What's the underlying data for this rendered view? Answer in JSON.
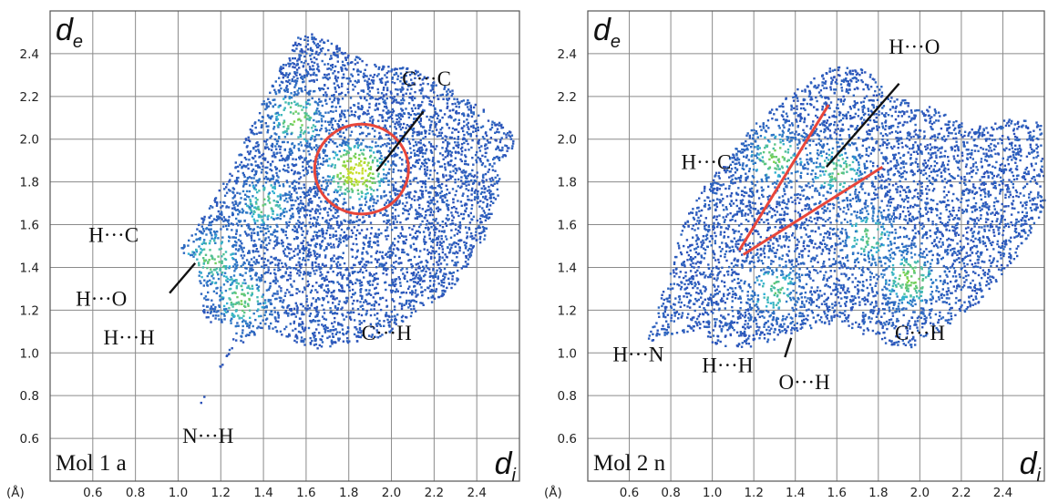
{
  "chart_data": [
    {
      "type": "scatter",
      "panel_label": "Mol 1 a",
      "xlabel_main": "d",
      "xlabel_sub": "i",
      "ylabel_main": "d",
      "ylabel_sub": "e",
      "unit_label": "(Å)",
      "xlim": [
        0.4,
        2.6
      ],
      "ylim": [
        0.4,
        2.6
      ],
      "x_ticks": [
        0.6,
        0.8,
        1.0,
        1.2,
        1.4,
        1.6,
        1.8,
        2.0,
        2.2,
        2.4
      ],
      "y_ticks": [
        0.6,
        0.8,
        1.0,
        1.2,
        1.4,
        1.6,
        1.8,
        2.0,
        2.2,
        2.4
      ],
      "grid": true,
      "envelope": [
        [
          1.05,
          0.68
        ],
        [
          1.25,
          1.02
        ],
        [
          1.4,
          1.12
        ],
        [
          1.62,
          1.02
        ],
        [
          1.96,
          1.08
        ],
        [
          2.12,
          1.2
        ],
        [
          2.28,
          1.3
        ],
        [
          2.44,
          1.55
        ],
        [
          2.58,
          2.02
        ],
        [
          2.42,
          2.15
        ],
        [
          2.12,
          2.33
        ],
        [
          1.9,
          2.36
        ],
        [
          1.78,
          2.42
        ],
        [
          1.64,
          2.5
        ],
        [
          1.55,
          2.48
        ],
        [
          1.4,
          2.2
        ],
        [
          1.24,
          1.86
        ],
        [
          1.05,
          1.55
        ],
        [
          1.0,
          1.48
        ],
        [
          1.08,
          1.45
        ],
        [
          1.12,
          1.15
        ],
        [
          1.2,
          1.14
        ],
        [
          1.28,
          1.12
        ],
        [
          1.16,
          0.88
        ]
      ],
      "hotspots": [
        {
          "x": 1.83,
          "y": 1.85,
          "intensity": 1.0
        },
        {
          "x": 1.55,
          "y": 2.1,
          "intensity": 0.55
        },
        {
          "x": 1.4,
          "y": 1.7,
          "intensity": 0.45
        },
        {
          "x": 1.3,
          "y": 1.25,
          "intensity": 0.5
        },
        {
          "x": 1.15,
          "y": 1.45,
          "intensity": 0.5
        }
      ],
      "annotations": [
        {
          "text": "C···C",
          "x": 2.05,
          "y": 2.25
        },
        {
          "text": "H···C",
          "x": 0.58,
          "y": 1.52
        },
        {
          "text": "H···O",
          "x": 0.52,
          "y": 1.22
        },
        {
          "text": "H···H",
          "x": 0.65,
          "y": 1.04
        },
        {
          "text": "C···H",
          "x": 1.86,
          "y": 1.06
        },
        {
          "text": "N···H",
          "x": 1.02,
          "y": 0.58
        }
      ],
      "markers": [
        {
          "kind": "ellipse",
          "cx": 1.86,
          "cy": 1.86,
          "rx": 0.22,
          "ry": 0.21,
          "color": "#e8463a"
        },
        {
          "kind": "line",
          "x1": 1.93,
          "y1": 1.85,
          "x2": 2.15,
          "y2": 2.13,
          "color": "#111111"
        },
        {
          "kind": "line",
          "x1": 0.96,
          "y1": 1.28,
          "x2": 1.08,
          "y2": 1.42,
          "color": "#111111"
        }
      ]
    },
    {
      "type": "scatter",
      "panel_label": "Mol 2 n",
      "xlabel_main": "d",
      "xlabel_sub": "i",
      "ylabel_main": "d",
      "ylabel_sub": "e",
      "unit_label": "(Å)",
      "xlim": [
        0.4,
        2.6
      ],
      "ylim": [
        0.4,
        2.6
      ],
      "x_ticks": [
        0.6,
        0.8,
        1.0,
        1.2,
        1.4,
        1.6,
        1.8,
        2.0,
        2.2,
        2.4
      ],
      "y_ticks": [
        0.6,
        0.8,
        1.0,
        1.2,
        1.4,
        1.6,
        1.8,
        2.0,
        2.2,
        2.4
      ],
      "grid": true,
      "envelope": [
        [
          0.68,
          1.05
        ],
        [
          0.95,
          1.12
        ],
        [
          1.0,
          1.04
        ],
        [
          1.18,
          1.03
        ],
        [
          1.4,
          1.1
        ],
        [
          1.62,
          1.15
        ],
        [
          1.8,
          1.04
        ],
        [
          1.96,
          1.03
        ],
        [
          2.08,
          1.1
        ],
        [
          2.28,
          1.24
        ],
        [
          2.46,
          1.45
        ],
        [
          2.6,
          1.68
        ],
        [
          2.58,
          2.08
        ],
        [
          2.44,
          2.1
        ],
        [
          2.24,
          2.06
        ],
        [
          2.04,
          2.16
        ],
        [
          1.84,
          2.22
        ],
        [
          1.72,
          2.35
        ],
        [
          1.58,
          2.35
        ],
        [
          1.42,
          2.25
        ],
        [
          1.2,
          2.08
        ],
        [
          0.98,
          1.82
        ],
        [
          0.86,
          1.62
        ],
        [
          0.8,
          1.42
        ]
      ],
      "hotspots": [
        {
          "x": 1.3,
          "y": 1.92,
          "intensity": 0.55
        },
        {
          "x": 1.6,
          "y": 1.85,
          "intensity": 0.5
        },
        {
          "x": 1.95,
          "y": 1.35,
          "intensity": 0.6
        },
        {
          "x": 1.3,
          "y": 1.3,
          "intensity": 0.45
        },
        {
          "x": 1.75,
          "y": 1.55,
          "intensity": 0.45
        }
      ],
      "annotations": [
        {
          "text": "H···O",
          "x": 1.85,
          "y": 2.4
        },
        {
          "text": "H···C",
          "x": 0.85,
          "y": 1.86
        },
        {
          "text": "H···N",
          "x": 0.52,
          "y": 0.96
        },
        {
          "text": "H···H",
          "x": 0.95,
          "y": 0.91
        },
        {
          "text": "O···H",
          "x": 1.32,
          "y": 0.83
        },
        {
          "text": "C···H",
          "x": 1.88,
          "y": 1.06
        }
      ],
      "markers": [
        {
          "kind": "line",
          "x1": 1.13,
          "y1": 1.48,
          "x2": 1.56,
          "y2": 2.16,
          "color": "#e8463a"
        },
        {
          "kind": "line",
          "x1": 1.15,
          "y1": 1.46,
          "x2": 1.82,
          "y2": 1.87,
          "color": "#e8463a"
        },
        {
          "kind": "line",
          "x1": 1.55,
          "y1": 1.87,
          "x2": 1.9,
          "y2": 2.26,
          "color": "#111111"
        },
        {
          "kind": "line",
          "x1": 1.35,
          "y1": 0.98,
          "x2": 1.38,
          "y2": 1.07,
          "color": "#111111"
        }
      ]
    }
  ],
  "colors": {
    "density_low": "#2c4fb8",
    "density_mid": "#2fb0d8",
    "density_high": "#7cd348",
    "density_peak": "#c8de2a",
    "grid": "#8a8a8a",
    "frame": "#555555"
  }
}
